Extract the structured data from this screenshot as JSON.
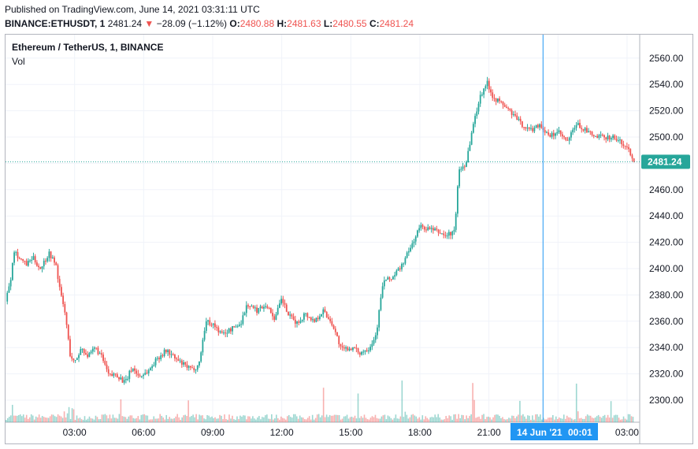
{
  "header": {
    "published": "Published on TradingView.com, June 14, 2021 03:31:11 UTC",
    "symbol": "BINANCE:ETHUSDT, 1",
    "last": "2481.24",
    "change_arrow": "▼",
    "change": "−28.09 (−1.12%)",
    "o_label": "O:",
    "o_value": "2480.88",
    "h_label": "H:",
    "h_value": "2481.63",
    "l_label": "L:",
    "l_value": "2480.55",
    "c_label": "C:",
    "c_value": "2481.24"
  },
  "legend": {
    "title": "Ethereum / TetherUS, 1, BINANCE",
    "volume": "Vol"
  },
  "colors": {
    "up": "#26a69a",
    "down": "#ef5350",
    "grid": "#f0f3fa",
    "crosshair": "#2196f3",
    "price_label_bg": "#26a69a"
  },
  "chart_data": {
    "type": "candlestick",
    "y_ticks": [
      2300,
      2320,
      2340,
      2360,
      2380,
      2400,
      2420,
      2440,
      2460,
      2480,
      2500,
      2520,
      2540,
      2560
    ],
    "y_tick_labels": [
      "2300.00",
      "2320.00",
      "2340.00",
      "2360.00",
      "2380.00",
      "2400.00",
      "2420.00",
      "2440.00",
      "2460.00",
      "2480.00",
      "2500.00",
      "2520.00",
      "2540.00",
      "2560.00"
    ],
    "ylim": [
      2283,
      2572
    ],
    "x_ticks": [
      3,
      6,
      9,
      12,
      15,
      18,
      21,
      24,
      27
    ],
    "x_tick_labels": [
      "03:00",
      "06:00",
      "09:00",
      "12:00",
      "15:00",
      "18:00",
      "21:00",
      "00:01",
      "03:00"
    ],
    "xlim": [
      0,
      27.55
    ],
    "current_price": 2481.24,
    "current_price_label": "2481.24",
    "crosshair_time_label": "14 Jun '21",
    "crosshair_time": 23.35,
    "price_path": [
      [
        0.0,
        2375
      ],
      [
        0.25,
        2395
      ],
      [
        0.35,
        2415
      ],
      [
        0.6,
        2408
      ],
      [
        0.9,
        2403
      ],
      [
        1.2,
        2408
      ],
      [
        1.5,
        2400
      ],
      [
        1.9,
        2412
      ],
      [
        2.2,
        2402
      ],
      [
        2.4,
        2380
      ],
      [
        2.6,
        2365
      ],
      [
        2.8,
        2335
      ],
      [
        3.0,
        2328
      ],
      [
        3.3,
        2340
      ],
      [
        3.6,
        2333
      ],
      [
        3.9,
        2340
      ],
      [
        4.2,
        2332
      ],
      [
        4.5,
        2318
      ],
      [
        4.8,
        2320
      ],
      [
        5.2,
        2313
      ],
      [
        5.5,
        2325
      ],
      [
        5.8,
        2318
      ],
      [
        6.2,
        2322
      ],
      [
        6.6,
        2332
      ],
      [
        7.0,
        2338
      ],
      [
        7.4,
        2331
      ],
      [
        7.8,
        2326
      ],
      [
        8.1,
        2323
      ],
      [
        8.4,
        2327
      ],
      [
        8.7,
        2360
      ],
      [
        9.0,
        2358
      ],
      [
        9.4,
        2350
      ],
      [
        9.8,
        2354
      ],
      [
        10.2,
        2358
      ],
      [
        10.5,
        2373
      ],
      [
        10.9,
        2368
      ],
      [
        11.3,
        2373
      ],
      [
        11.7,
        2362
      ],
      [
        12.0,
        2377
      ],
      [
        12.3,
        2364
      ],
      [
        12.7,
        2358
      ],
      [
        13.0,
        2366
      ],
      [
        13.4,
        2360
      ],
      [
        13.8,
        2368
      ],
      [
        14.2,
        2358
      ],
      [
        14.6,
        2338
      ],
      [
        15.0,
        2340
      ],
      [
        15.4,
        2336
      ],
      [
        15.8,
        2340
      ],
      [
        16.1,
        2350
      ],
      [
        16.4,
        2390
      ],
      [
        16.8,
        2393
      ],
      [
        17.2,
        2402
      ],
      [
        17.6,
        2416
      ],
      [
        18.0,
        2432
      ],
      [
        18.4,
        2430
      ],
      [
        18.8,
        2428
      ],
      [
        19.1,
        2425
      ],
      [
        19.5,
        2428
      ],
      [
        19.7,
        2475
      ],
      [
        20.0,
        2480
      ],
      [
        20.3,
        2508
      ],
      [
        20.6,
        2530
      ],
      [
        20.9,
        2542
      ],
      [
        21.2,
        2530
      ],
      [
        21.6,
        2525
      ],
      [
        22.0,
        2518
      ],
      [
        22.4,
        2510
      ],
      [
        22.8,
        2505
      ],
      [
        23.2,
        2510
      ],
      [
        23.6,
        2500
      ],
      [
        24.0,
        2504
      ],
      [
        24.4,
        2496
      ],
      [
        24.8,
        2510
      ],
      [
        25.2,
        2505
      ],
      [
        25.6,
        2500
      ],
      [
        26.0,
        2500
      ],
      [
        26.4,
        2500
      ],
      [
        26.8,
        2495
      ],
      [
        27.1,
        2490
      ],
      [
        27.3,
        2481.24
      ]
    ],
    "volume_spikes": [
      [
        0.3,
        0.32
      ],
      [
        2.7,
        0.32
      ],
      [
        2.9,
        0.36
      ],
      [
        5.0,
        0.3
      ],
      [
        7.9,
        0.28
      ],
      [
        13.8,
        0.4
      ],
      [
        15.3,
        0.32
      ],
      [
        17.2,
        0.36
      ],
      [
        20.3,
        0.82
      ],
      [
        22.3,
        0.28
      ],
      [
        24.8,
        0.66
      ],
      [
        26.3,
        0.34
      ],
      [
        27.3,
        0.22
      ]
    ]
  }
}
